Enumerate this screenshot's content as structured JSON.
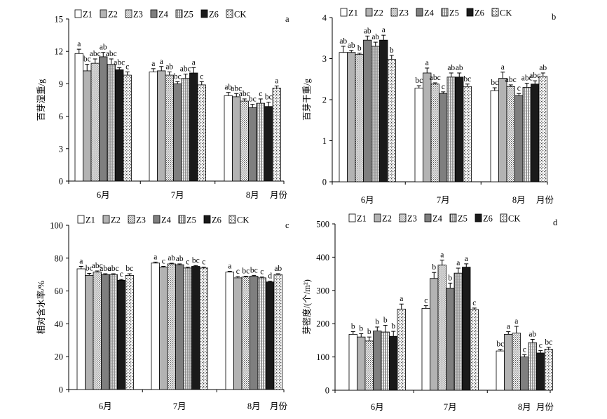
{
  "series_names": [
    "Z1",
    "Z2",
    "Z3",
    "Z4",
    "Z5",
    "Z6",
    "CK"
  ],
  "series_fills": [
    "#ffffff",
    "#b3b3b3",
    "url(#pat-dots)",
    "#7f7f7f",
    "url(#pat-vert)",
    "#1a1a1a",
    "url(#pat-checker)"
  ],
  "chart_data": [
    {
      "type": "bar",
      "panel": "a",
      "ylabel": "百芽湿重/g",
      "xlabel": "月份",
      "categories": [
        "6月",
        "7月",
        "8月"
      ],
      "ylim": [
        0,
        15
      ],
      "yticks": [
        0,
        3,
        6,
        9,
        12,
        15
      ],
      "series": [
        {
          "name": "Z1",
          "values": [
            11.8,
            10.1,
            7.9
          ],
          "errors": [
            0.4,
            0.3,
            0.3
          ],
          "labels": [
            "a",
            "a",
            "ab"
          ]
        },
        {
          "name": "Z2",
          "values": [
            10.2,
            10.2,
            7.8
          ],
          "errors": [
            0.6,
            0.4,
            0.3
          ],
          "labels": [
            "bc",
            "a",
            "abc"
          ]
        },
        {
          "name": "Z3",
          "values": [
            10.9,
            9.8,
            7.4
          ],
          "errors": [
            0.4,
            0.3,
            0.2
          ],
          "labels": [
            "abc",
            "ab",
            "abc"
          ]
        },
        {
          "name": "Z4",
          "values": [
            11.5,
            9.0,
            6.8
          ],
          "errors": [
            0.4,
            0.2,
            0.3
          ],
          "labels": [
            "ab",
            "bc",
            "bc"
          ]
        },
        {
          "name": "Z5",
          "values": [
            10.8,
            9.5,
            7.2
          ],
          "errors": [
            0.5,
            0.4,
            0.4
          ],
          "labels": [
            "abc",
            "abc",
            "c"
          ]
        },
        {
          "name": "Z6",
          "values": [
            10.3,
            10.0,
            6.9
          ],
          "errors": [
            0.2,
            0.5,
            0.4
          ],
          "labels": [
            "abc",
            "a",
            "bc"
          ]
        },
        {
          "name": "CK",
          "values": [
            9.8,
            8.9,
            8.6
          ],
          "errors": [
            0.3,
            0.3,
            0.2
          ],
          "labels": [
            "c",
            "c",
            "a"
          ]
        }
      ]
    },
    {
      "type": "bar",
      "panel": "b",
      "ylabel": "百芽干重/g",
      "xlabel": "月份",
      "categories": [
        "6月",
        "7月",
        "8月"
      ],
      "ylim": [
        0,
        4
      ],
      "yticks": [
        0,
        1,
        2,
        3,
        4
      ],
      "series": [
        {
          "name": "Z1",
          "values": [
            3.15,
            2.28,
            2.22
          ],
          "errors": [
            0.15,
            0.06,
            0.07
          ],
          "labels": [
            "ab",
            "bc",
            "bc"
          ]
        },
        {
          "name": "Z2",
          "values": [
            3.15,
            2.65,
            2.52
          ],
          "errors": [
            0.05,
            0.12,
            0.15
          ],
          "labels": [
            "ab",
            "a",
            "a"
          ]
        },
        {
          "name": "Z3",
          "values": [
            3.1,
            2.38,
            2.32
          ],
          "errors": [
            0.03,
            0.03,
            0.04
          ],
          "labels": [
            "b",
            "abc",
            "abc"
          ]
        },
        {
          "name": "Z4",
          "values": [
            3.45,
            2.15,
            2.1
          ],
          "errors": [
            0.1,
            0.04,
            0.05
          ],
          "labels": [
            "ab",
            "c",
            "c"
          ]
        },
        {
          "name": "Z5",
          "values": [
            3.3,
            2.55,
            2.3
          ],
          "errors": [
            0.1,
            0.1,
            0.1
          ],
          "labels": [
            "ab",
            "ab",
            "abc"
          ]
        },
        {
          "name": "Z6",
          "values": [
            3.45,
            2.55,
            2.38
          ],
          "errors": [
            0.12,
            0.1,
            0.08
          ],
          "labels": [
            "a",
            "ab",
            "abc"
          ]
        },
        {
          "name": "CK",
          "values": [
            2.98,
            2.32,
            2.57
          ],
          "errors": [
            0.1,
            0.06,
            0.08
          ],
          "labels": [
            "b",
            "bc",
            "ab"
          ]
        }
      ]
    },
    {
      "type": "bar",
      "panel": "c",
      "ylabel": "相对含水率/%",
      "xlabel": "月份",
      "categories": [
        "6月",
        "7月",
        "8月"
      ],
      "ylim": [
        0,
        100
      ],
      "yticks": [
        0,
        20,
        40,
        60,
        80,
        100
      ],
      "series": [
        {
          "name": "Z1",
          "values": [
            73.5,
            77.0,
            71.5
          ],
          "errors": [
            1.5,
            0.6,
            0.5
          ],
          "labels": [
            "a",
            "a",
            "a"
          ]
        },
        {
          "name": "Z2",
          "values": [
            69.5,
            74.5,
            68.0
          ],
          "errors": [
            1.2,
            0.5,
            0.8
          ],
          "labels": [
            "bc",
            "c",
            "c"
          ]
        },
        {
          "name": "Z3",
          "values": [
            71.5,
            76.5,
            68.5
          ],
          "errors": [
            0.7,
            0.4,
            0.5
          ],
          "labels": [
            "abc",
            "ab",
            "bc"
          ]
        },
        {
          "name": "Z4",
          "values": [
            70.0,
            76.0,
            69.0
          ],
          "errors": [
            0.5,
            0.5,
            0.5
          ],
          "labels": [
            "abc",
            "ab",
            "bc"
          ]
        },
        {
          "name": "Z5",
          "values": [
            70.0,
            74.0,
            68.0
          ],
          "errors": [
            0.5,
            0.5,
            0.5
          ],
          "labels": [
            "abc",
            "c",
            "c"
          ]
        },
        {
          "name": "Z6",
          "values": [
            66.5,
            75.0,
            65.5
          ],
          "errors": [
            0.5,
            0.5,
            0.5
          ],
          "labels": [
            "c",
            "bc",
            "d"
          ]
        },
        {
          "name": "CK",
          "values": [
            69.5,
            74.0,
            70.0
          ],
          "errors": [
            1.0,
            0.5,
            0.5
          ],
          "labels": [
            "bc",
            "c",
            "ab"
          ]
        }
      ]
    },
    {
      "type": "bar",
      "panel": "d",
      "ylabel": "芽密度/(个/m²)",
      "xlabel": "月份",
      "categories": [
        "6月",
        "7月",
        "8月"
      ],
      "ylim": [
        0,
        500
      ],
      "yticks": [
        0,
        100,
        200,
        300,
        400,
        500
      ],
      "series": [
        {
          "name": "Z1",
          "values": [
            168,
            246,
            118
          ],
          "errors": [
            8,
            8,
            5
          ],
          "labels": [
            "b",
            "c",
            "bc"
          ]
        },
        {
          "name": "Z2",
          "values": [
            160,
            336,
            168
          ],
          "errors": [
            10,
            18,
            8
          ],
          "labels": [
            "b",
            "b",
            "a"
          ]
        },
        {
          "name": "Z3",
          "values": [
            148,
            376,
            172
          ],
          "errors": [
            12,
            15,
            20
          ],
          "labels": [
            "b",
            "a",
            "a"
          ]
        },
        {
          "name": "Z4",
          "values": [
            178,
            307,
            100
          ],
          "errors": [
            12,
            15,
            7
          ],
          "labels": [
            "b",
            "b",
            "c"
          ]
        },
        {
          "name": "Z5",
          "values": [
            175,
            352,
            143
          ],
          "errors": [
            20,
            15,
            10
          ],
          "labels": [
            "b",
            "a",
            "ab"
          ]
        },
        {
          "name": "Z6",
          "values": [
            162,
            370,
            112
          ],
          "errors": [
            15,
            10,
            7
          ],
          "labels": [
            "b",
            "a",
            "c"
          ]
        },
        {
          "name": "CK",
          "values": [
            244,
            243,
            123
          ],
          "errors": [
            15,
            4,
            6
          ],
          "labels": [
            "a",
            "c",
            "bc"
          ]
        }
      ]
    }
  ]
}
